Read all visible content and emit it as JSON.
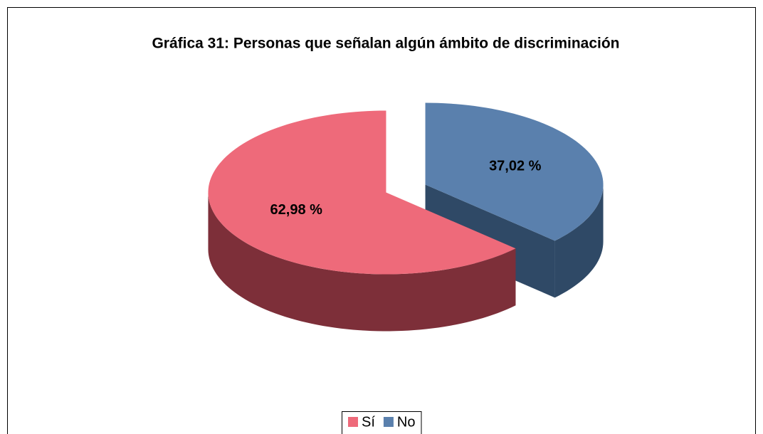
{
  "chart_data": {
    "type": "pie3d",
    "title": "Gráfica 31: Personas que señalan algún ámbito de discriminación",
    "categories": [
      "Sí",
      "No"
    ],
    "values": [
      62.98,
      37.02
    ],
    "value_labels": [
      "62,98 %",
      "37,02 %"
    ],
    "colors": [
      "#ee6a7a",
      "#5a80ad"
    ],
    "side_colors": [
      "#7d2f39",
      "#2f4966"
    ],
    "legend": "bottom"
  }
}
